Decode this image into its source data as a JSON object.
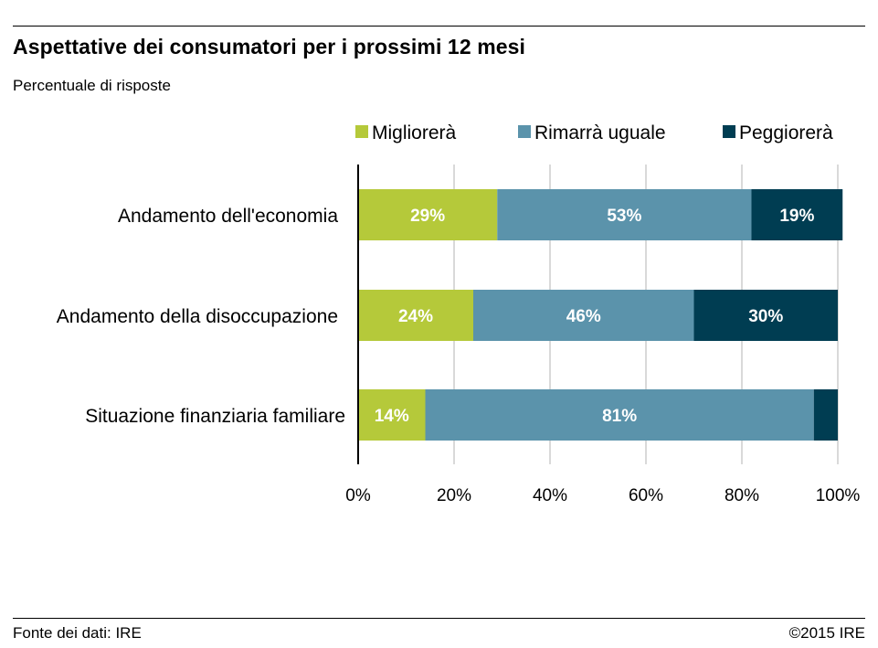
{
  "header": {
    "title": "Aspettative dei consumatori per i prossimi 12 mesi",
    "subtitle": "Percentuale di risposte"
  },
  "footer": {
    "source": "Fonte dei dati:  IRE",
    "copyright": "©2015 IRE"
  },
  "chart_data": {
    "type": "bar",
    "orientation": "horizontal",
    "stacked": true,
    "title": "Aspettative dei consumatori per i prossimi 12 mesi",
    "subtitle": "Percentuale di risposte",
    "categories": [
      "Andamento dell'economia",
      "Andamento della disoccupazione",
      "Situazione finanziaria familiare"
    ],
    "series": [
      {
        "name": "Migliorerà",
        "color": "#b5c93a",
        "values": [
          29,
          24,
          14
        ],
        "labels": [
          "29%",
          "24%",
          "14%"
        ]
      },
      {
        "name": "Rimarrà uguale",
        "color": "#5b93ab",
        "values": [
          53,
          46,
          81
        ],
        "labels": [
          "53%",
          "46%",
          "81%"
        ]
      },
      {
        "name": "Peggiorerà",
        "color": "#003d52",
        "values": [
          19,
          30,
          5
        ],
        "labels": [
          "19%",
          "30%",
          ""
        ]
      }
    ],
    "xlim": [
      0,
      100
    ],
    "xticks": [
      "0%",
      "20%",
      "40%",
      "60%",
      "80%",
      "100%"
    ],
    "grid": true,
    "legend_position": "top"
  }
}
